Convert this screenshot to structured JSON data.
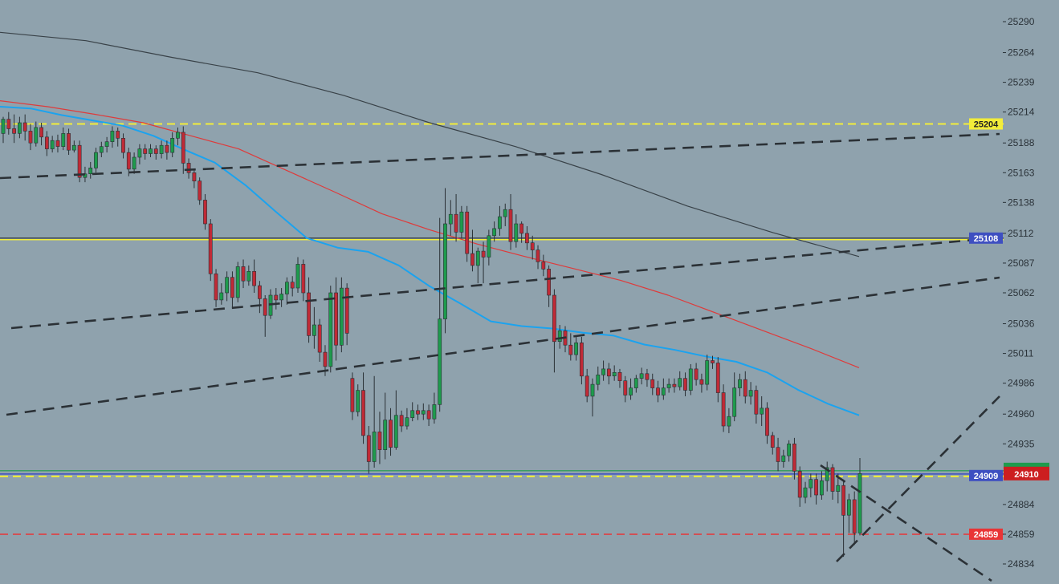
{
  "chart_data": {
    "type": "candlestick",
    "title": "",
    "xlabel": "",
    "ylabel": "",
    "ylim": [
      24815,
      25305
    ],
    "grid": false,
    "y_ticks": [
      25290,
      25264,
      25239,
      25214,
      25188,
      25163,
      25138,
      25112,
      25087,
      25062,
      25036,
      25011,
      24986,
      24960,
      24935,
      24884,
      24859,
      24834
    ],
    "candles": [
      [
        25196,
        25208,
        25188,
        25210
      ],
      [
        25208,
        25200,
        25195,
        25214
      ],
      [
        25200,
        25196,
        25188,
        25212
      ],
      [
        25196,
        25205,
        25192,
        25210
      ],
      [
        25205,
        25198,
        25190,
        25212
      ],
      [
        25198,
        25188,
        25182,
        25204
      ],
      [
        25188,
        25201,
        25185,
        25206
      ],
      [
        25201,
        25193,
        25186,
        25205
      ],
      [
        25193,
        25183,
        25177,
        25198
      ],
      [
        25183,
        25190,
        25180,
        25194
      ],
      [
        25190,
        25185,
        25180,
        25195
      ],
      [
        25185,
        25196,
        25182,
        25201
      ],
      [
        25196,
        25182,
        25178,
        25200
      ],
      [
        25182,
        25186,
        25180,
        25190
      ],
      [
        25186,
        25159,
        25155,
        25190
      ],
      [
        25159,
        25162,
        25155,
        25168
      ],
      [
        25162,
        25167,
        25158,
        25172
      ],
      [
        25167,
        25180,
        25163,
        25184
      ],
      [
        25180,
        25185,
        25176,
        25189
      ],
      [
        25185,
        25189,
        25180,
        25193
      ],
      [
        25189,
        25198,
        25184,
        25202
      ],
      [
        25198,
        25192,
        25185,
        25201
      ],
      [
        25192,
        25180,
        25175,
        25196
      ],
      [
        25180,
        25166,
        25160,
        25184
      ],
      [
        25166,
        25176,
        25162,
        25180
      ],
      [
        25176,
        25183,
        25170,
        25187
      ],
      [
        25183,
        25179,
        25174,
        25187
      ],
      [
        25179,
        25183,
        25176,
        25187
      ],
      [
        25183,
        25179,
        25174,
        25186
      ],
      [
        25179,
        25186,
        25175,
        25190
      ],
      [
        25186,
        25180,
        25174,
        25190
      ],
      [
        25180,
        25192,
        25176,
        25197
      ],
      [
        25192,
        25197,
        25186,
        25201
      ],
      [
        25197,
        25171,
        25162,
        25202
      ],
      [
        25171,
        25163,
        25158,
        25175
      ],
      [
        25163,
        25156,
        25150,
        25166
      ],
      [
        25156,
        25140,
        25136,
        25159
      ],
      [
        25140,
        25120,
        25115,
        25145
      ],
      [
        25120,
        25078,
        25072,
        25124
      ],
      [
        25078,
        25056,
        25050,
        25082
      ],
      [
        25056,
        25062,
        25052,
        25070
      ],
      [
        25062,
        25075,
        25055,
        25080
      ],
      [
        25075,
        25058,
        25050,
        25080
      ],
      [
        25058,
        25084,
        25054,
        25088
      ],
      [
        25084,
        25072,
        25066,
        25090
      ],
      [
        25072,
        25080,
        25068,
        25085
      ],
      [
        25080,
        25068,
        25062,
        25090
      ],
      [
        25068,
        25057,
        25045,
        25072
      ],
      [
        25057,
        25043,
        25025,
        25060
      ],
      [
        25043,
        25060,
        25040,
        25065
      ],
      [
        25060,
        25056,
        25048,
        25066
      ],
      [
        25056,
        25061,
        25050,
        25066
      ],
      [
        25061,
        25071,
        25052,
        25075
      ],
      [
        25071,
        25066,
        25059,
        25076
      ],
      [
        25066,
        25086,
        25062,
        25092
      ],
      [
        25086,
        25062,
        25055,
        25090
      ],
      [
        25062,
        25026,
        25020,
        25075
      ],
      [
        25026,
        25035,
        25015,
        25050
      ],
      [
        25035,
        25012,
        25004,
        25040
      ],
      [
        25012,
        25000,
        24992,
        25018
      ],
      [
        25000,
        25062,
        24995,
        25068
      ],
      [
        25062,
        25018,
        25005,
        25075
      ],
      [
        25018,
        25066,
        25012,
        25075
      ],
      [
        25066,
        25028,
        25018,
        25070
      ],
      [
        24990,
        24962,
        24955,
        24995
      ],
      [
        24962,
        24980,
        24958,
        24985
      ],
      [
        24980,
        24942,
        24935,
        24995
      ],
      [
        24942,
        24920,
        24910,
        24950
      ],
      [
        24920,
        24945,
        24915,
        24992
      ],
      [
        24945,
        24930,
        24918,
        24962
      ],
      [
        24930,
        24955,
        24922,
        24978
      ],
      [
        24955,
        24932,
        24925,
        24965
      ],
      [
        24932,
        24959,
        24930,
        24980
      ],
      [
        24959,
        24950,
        24945,
        24963
      ],
      [
        24950,
        24957,
        24947,
        24965
      ],
      [
        24957,
        24963,
        24954,
        24970
      ],
      [
        24963,
        24960,
        24955,
        24968
      ],
      [
        24960,
        24963,
        24955,
        24969
      ],
      [
        24963,
        24956,
        24950,
        24968
      ],
      [
        24956,
        24968,
        24952,
        24978
      ],
      [
        24968,
        25040,
        24962,
        25125
      ],
      [
        25040,
        25120,
        25028,
        25150
      ],
      [
        25120,
        25128,
        25110,
        25140
      ],
      [
        25128,
        25113,
        25105,
        25145
      ],
      [
        25113,
        25130,
        25108,
        25135
      ],
      [
        25130,
        25095,
        25088,
        25135
      ],
      [
        25095,
        25085,
        25080,
        25115
      ],
      [
        25085,
        25097,
        25070,
        25100
      ],
      [
        25097,
        25092,
        25070,
        25105
      ],
      [
        25092,
        25110,
        25085,
        25115
      ],
      [
        25110,
        25116,
        25105,
        25122
      ],
      [
        25116,
        25126,
        25110,
        25135
      ],
      [
        25126,
        25132,
        25118,
        25137
      ],
      [
        25132,
        25105,
        25098,
        25145
      ],
      [
        25105,
        25120,
        25100,
        25128
      ],
      [
        25120,
        25112,
        25104,
        25122
      ],
      [
        25112,
        25104,
        25098,
        25118
      ],
      [
        25104,
        25098,
        25090,
        25110
      ],
      [
        25098,
        25088,
        25082,
        25102
      ],
      [
        25088,
        25082,
        25076,
        25094
      ],
      [
        25082,
        25060,
        25050,
        25085
      ],
      [
        25060,
        25021,
        24995,
        25065
      ],
      [
        25021,
        25030,
        25015,
        25035
      ],
      [
        25030,
        25018,
        25012,
        25034
      ],
      [
        25018,
        25010,
        25005,
        25028
      ],
      [
        25010,
        25020,
        25005,
        25025
      ],
      [
        25020,
        24992,
        24985,
        25025
      ],
      [
        24992,
        24975,
        24970,
        24998
      ],
      [
        24975,
        24985,
        24958,
        24990
      ],
      [
        24985,
        24993,
        24980,
        25000
      ],
      [
        24993,
        24998,
        24988,
        25005
      ],
      [
        24998,
        24992,
        24985,
        25003
      ],
      [
        24992,
        24995,
        24988,
        25001
      ],
      [
        24995,
        24988,
        24982,
        24998
      ],
      [
        24988,
        24976,
        24970,
        24992
      ],
      [
        24976,
        24982,
        24972,
        24990
      ],
      [
        24982,
        24990,
        24978,
        24993
      ],
      [
        24990,
        24994,
        24985,
        24999
      ],
      [
        24994,
        24989,
        24983,
        24998
      ],
      [
        24989,
        24982,
        24976,
        24994
      ],
      [
        24982,
        24976,
        24970,
        24988
      ],
      [
        24976,
        24982,
        24972,
        24990
      ],
      [
        24982,
        24985,
        24978,
        24990
      ],
      [
        24985,
        24983,
        24978,
        24990
      ],
      [
        24983,
        24990,
        24980,
        24996
      ],
      [
        24990,
        24980,
        24975,
        24995
      ],
      [
        24980,
        24998,
        24976,
        25002
      ],
      [
        24998,
        24989,
        24984,
        25003
      ],
      [
        24989,
        24985,
        24978,
        24994
      ],
      [
        24985,
        25005,
        24980,
        25010
      ],
      [
        25005,
        25003,
        24998,
        25009
      ],
      [
        25003,
        24978,
        24970,
        25008
      ],
      [
        24978,
        24950,
        24945,
        24985
      ],
      [
        24950,
        24958,
        24944,
        24965
      ],
      [
        24958,
        24982,
        24954,
        24995
      ],
      [
        24982,
        24989,
        24975,
        24994
      ],
      [
        24989,
        24975,
        24969,
        24996
      ],
      [
        24975,
        24980,
        24968,
        24987
      ],
      [
        24980,
        24960,
        24952,
        24984
      ],
      [
        24960,
        24965,
        24950,
        24975
      ],
      [
        24965,
        24942,
        24935,
        24970
      ],
      [
        24942,
        24932,
        24926,
        24945
      ],
      [
        24932,
        24920,
        24912,
        24940
      ],
      [
        24920,
        24925,
        24915,
        24930
      ],
      [
        24925,
        24935,
        24920,
        24938
      ],
      [
        24935,
        24912,
        24905,
        24940
      ],
      [
        24912,
        24890,
        24882,
        24916
      ],
      [
        24890,
        24898,
        24885,
        24903
      ],
      [
        24898,
        24905,
        24890,
        24910
      ],
      [
        24905,
        24892,
        24884,
        24910
      ],
      [
        24892,
        24904,
        24888,
        24912
      ],
      [
        24904,
        24915,
        24895,
        24920
      ],
      [
        24915,
        24895,
        24888,
        24918
      ],
      [
        24895,
        24900,
        24885,
        24910
      ],
      [
        24900,
        24875,
        24840,
        24905
      ],
      [
        24875,
        24888,
        24860,
        24893
      ],
      [
        24888,
        24860,
        24850,
        24895
      ],
      [
        24860,
        24910,
        24858,
        24923
      ]
    ],
    "ma_blue": [
      [
        25217,
        25220
      ],
      [
        25214,
        25220
      ],
      [
        25205,
        25218
      ],
      [
        25200,
        25214
      ],
      [
        25196,
        25209
      ],
      [
        25188,
        25200
      ],
      [
        25175,
        25190
      ],
      [
        25165,
        25178
      ],
      [
        25145,
        25160
      ],
      [
        25120,
        25140
      ],
      [
        25100,
        25116
      ],
      [
        25090,
        25110
      ],
      [
        25085,
        25108
      ],
      [
        25070,
        25100
      ],
      [
        25050,
        25085
      ],
      [
        25036,
        25070
      ],
      [
        25030,
        25046
      ],
      [
        25028,
        25040
      ],
      [
        25030,
        25034
      ],
      [
        25026,
        25031
      ],
      [
        25020,
        25032
      ],
      [
        25012,
        25025
      ],
      [
        25010,
        25018
      ],
      [
        25005,
        25012
      ],
      [
        25000,
        25008
      ],
      [
        24990,
        25000
      ],
      [
        24975,
        24986
      ],
      [
        24962,
        24975
      ],
      [
        24958,
        24960
      ]
    ],
    "ma_red": [
      [
        25222,
        25225
      ],
      [
        25215,
        25222
      ],
      [
        25208,
        25216
      ],
      [
        25200,
        25210
      ],
      [
        25190,
        25198
      ],
      [
        25178,
        25188
      ],
      [
        25160,
        25170
      ],
      [
        25142,
        25152
      ],
      [
        25125,
        25132
      ],
      [
        25112,
        25118
      ],
      [
        25100,
        25106
      ],
      [
        25090,
        25095
      ],
      [
        25080,
        25085
      ],
      [
        25070,
        25075
      ],
      [
        25058,
        25062
      ],
      [
        25042,
        25048
      ],
      [
        25028,
        25032
      ],
      [
        25012,
        25018
      ],
      [
        24998,
        25000
      ]
    ],
    "ma_black": [
      [
        25282,
        25280
      ],
      [
        25276,
        25272
      ],
      [
        25264,
        25256
      ],
      [
        25250,
        25244
      ],
      [
        25230,
        25226
      ],
      [
        25210,
        25200
      ],
      [
        25190,
        25180
      ],
      [
        25168,
        25155
      ],
      [
        25140,
        25130
      ],
      [
        25120,
        25105
      ],
      [
        25095,
        25090
      ]
    ],
    "lines": {
      "level_25204": 25204,
      "level_25108": 25108,
      "level_24909": 24909,
      "level_24859": 24859
    },
    "price_badges": [
      {
        "text": "25204",
        "value": 25204,
        "bg": "#f3ed3a",
        "fg": "#222222"
      },
      {
        "text": "25108",
        "value": 25108,
        "bg": "#3e4fc1",
        "fg": "#ffffff"
      },
      {
        "text": "24909",
        "value": 24909,
        "bg": "#3e4fc1",
        "fg": "#ffffff"
      },
      {
        "text": "24859",
        "value": 24859,
        "bg": "#e93436",
        "fg": "#ffffff"
      },
      {
        "text": "24910",
        "value": 24910,
        "bg": "#cc1e20",
        "fg": "#ffffff"
      }
    ]
  },
  "colors": {
    "background": "#8fa2ad",
    "bull": "#1e9b4d",
    "bear": "#c02a36",
    "ma_blue": "#1ba3ef",
    "ma_red": "#de3b3b",
    "ma_black": "#394248",
    "trend": "#2b3136",
    "level_yellow": "#f3ed3a",
    "level_red": "#e93436",
    "level_blue": "#3e4fc1",
    "level_green": "#1e9b4d"
  }
}
